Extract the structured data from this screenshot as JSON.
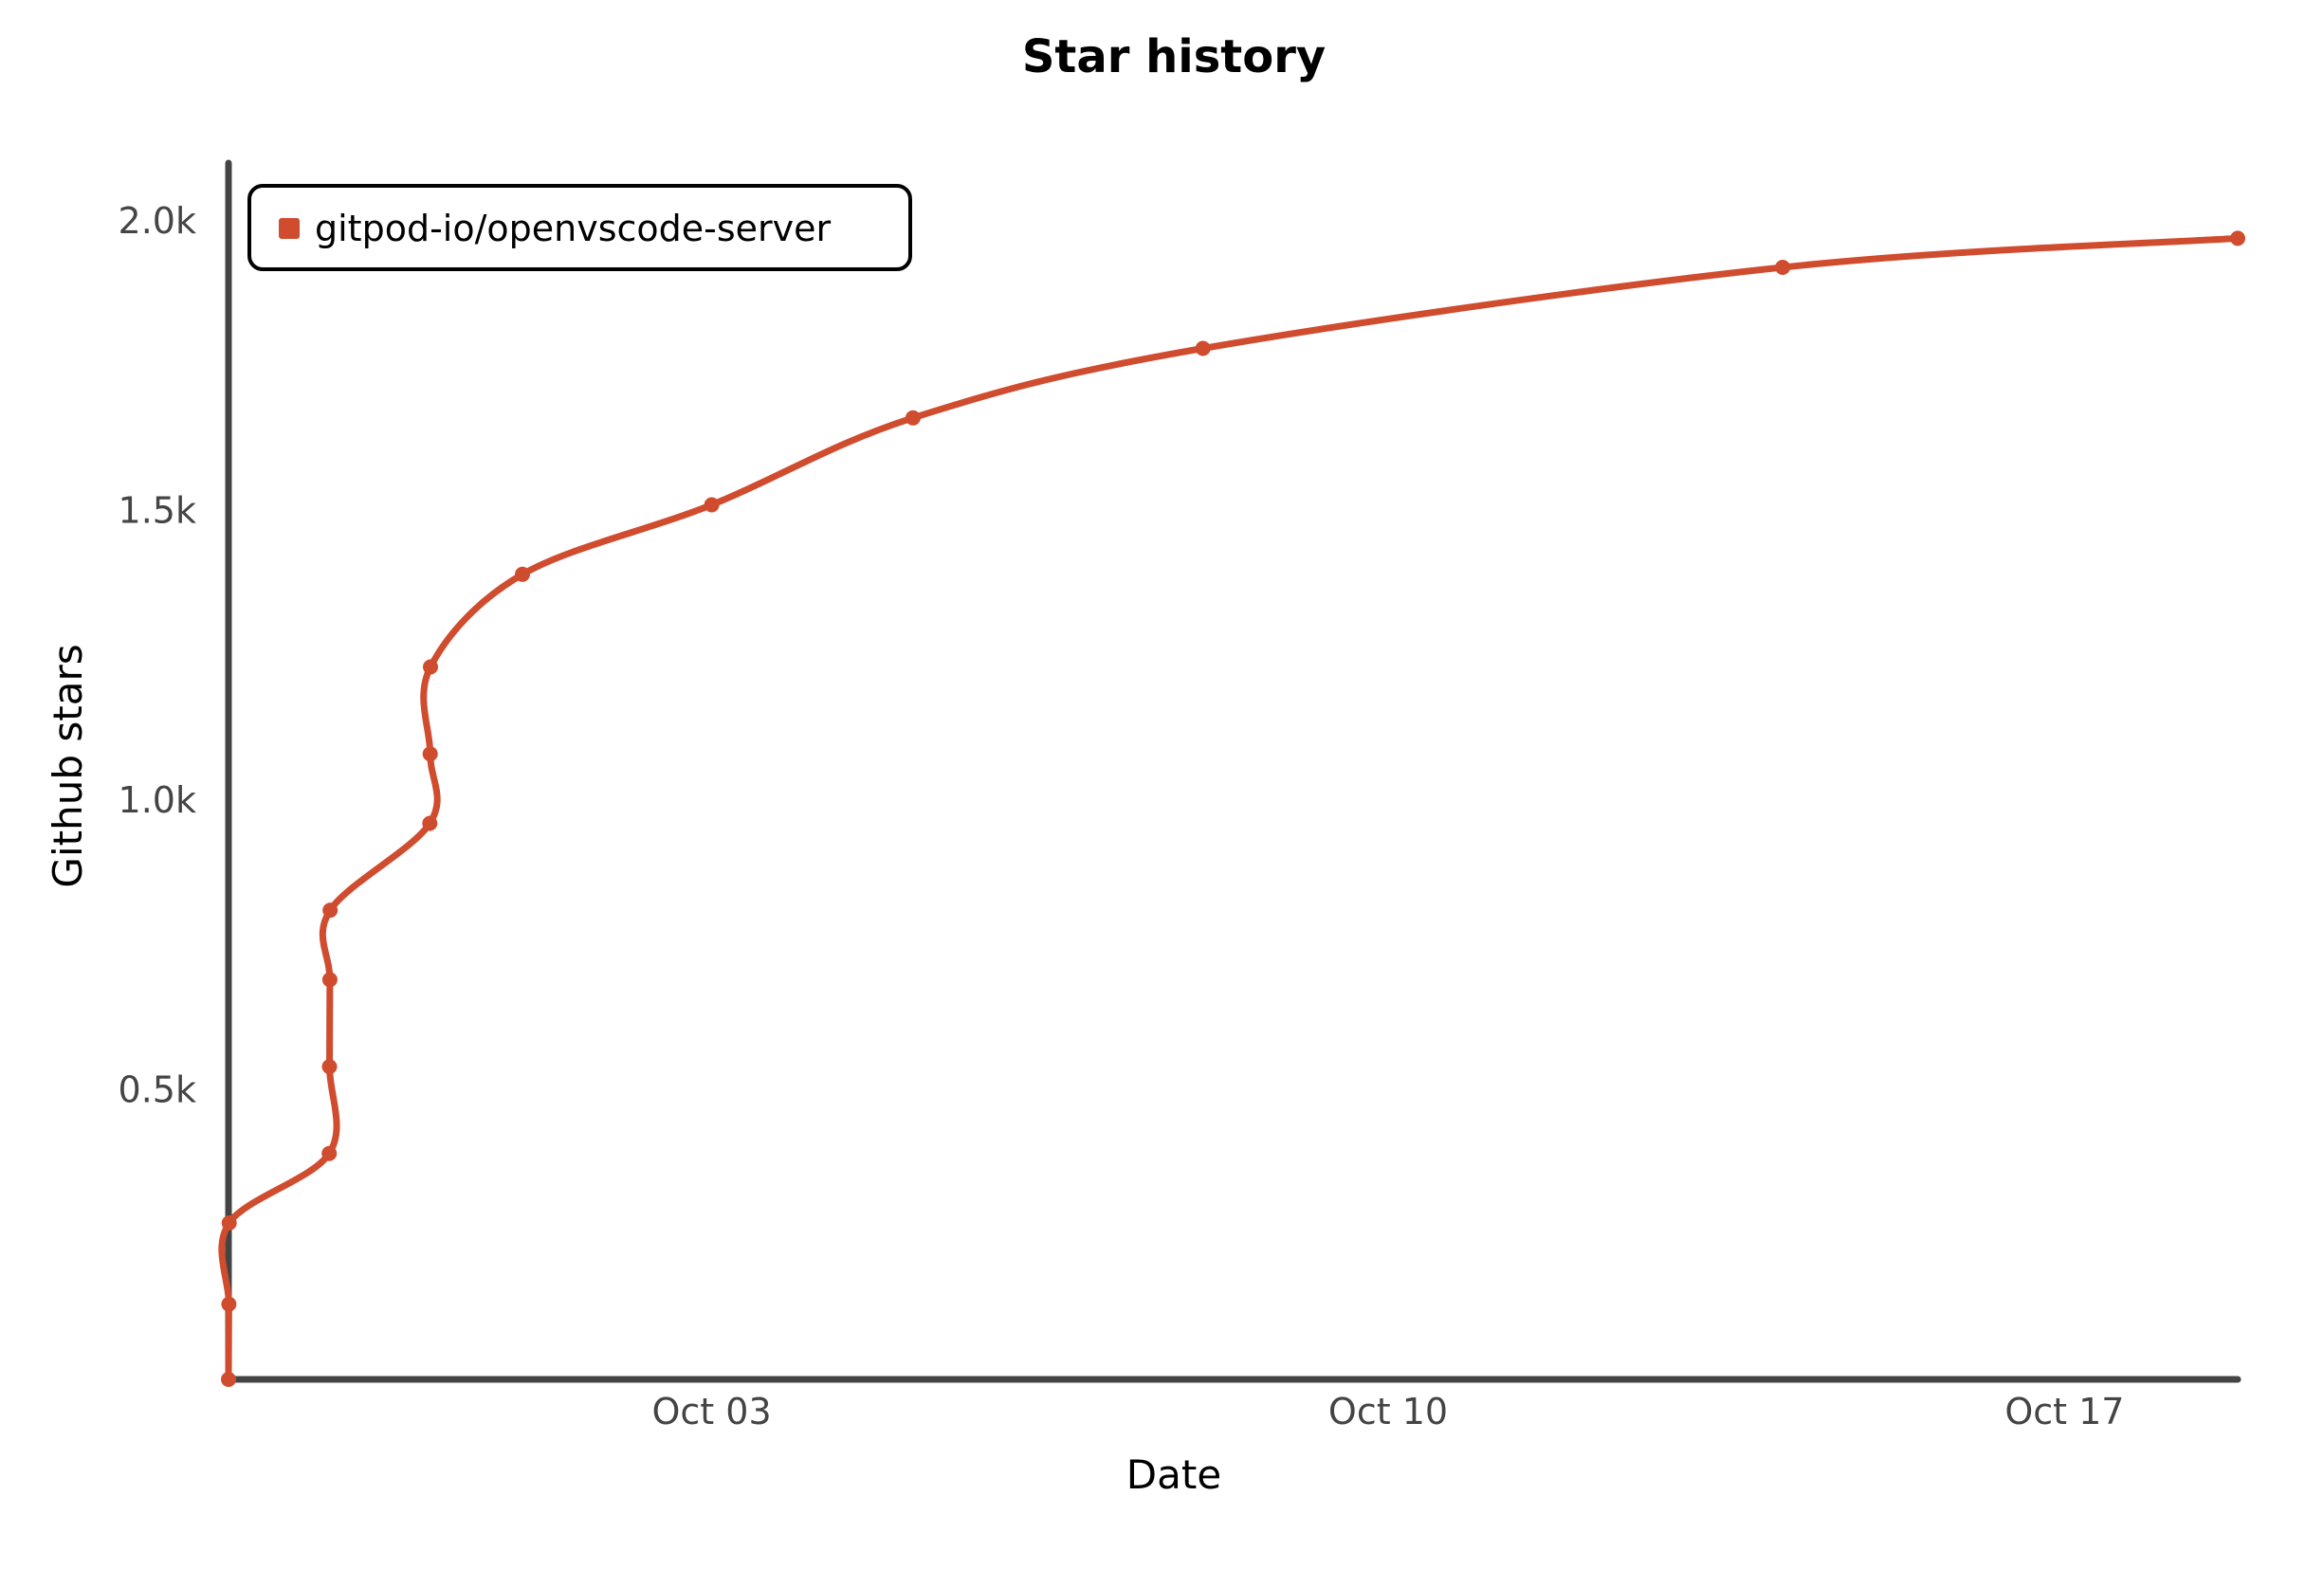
{
  "chart_data": {
    "type": "line",
    "title": "Star history",
    "xlabel": "Date",
    "ylabel": "Github stars",
    "x_ticks": [
      {
        "label": "Oct 03",
        "value": "2021-10-03"
      },
      {
        "label": "Oct 10",
        "value": "2021-10-10"
      },
      {
        "label": "Oct 17",
        "value": "2021-10-17"
      }
    ],
    "y_ticks": [
      {
        "label": "0.5k",
        "value": 500
      },
      {
        "label": "1.0k",
        "value": 1000
      },
      {
        "label": "1.5k",
        "value": 1500
      },
      {
        "label": "2.0k",
        "value": 2000
      }
    ],
    "xlim": [
      "2021-09-28",
      "2021-10-18T19:00"
    ],
    "ylim": [
      0,
      2100
    ],
    "grid": false,
    "legend": {
      "position": "top-left"
    },
    "series": [
      {
        "name": "gitpod-io/openvscode-server",
        "color": "#d04c2f",
        "points": [
          {
            "x": "2021-09-28T00:00",
            "y": 0
          },
          {
            "x": "2021-09-28T00:05",
            "y": 130
          },
          {
            "x": "2021-09-28T00:10",
            "y": 270
          },
          {
            "x": "2021-09-29T01:00",
            "y": 390
          },
          {
            "x": "2021-09-29T01:05",
            "y": 540
          },
          {
            "x": "2021-09-29T01:10",
            "y": 690
          },
          {
            "x": "2021-09-29T01:15",
            "y": 810
          },
          {
            "x": "2021-09-30T02:00",
            "y": 960
          },
          {
            "x": "2021-09-30T02:05",
            "y": 1080
          },
          {
            "x": "2021-09-30T02:10",
            "y": 1230
          },
          {
            "x": "2021-10-01T01:00",
            "y": 1390
          },
          {
            "x": "2021-10-03T00:00",
            "y": 1510
          },
          {
            "x": "2021-10-05T02:00",
            "y": 1660
          },
          {
            "x": "2021-10-08T02:00",
            "y": 1780
          },
          {
            "x": "2021-10-14T02:00",
            "y": 1920
          },
          {
            "x": "2021-10-18T19:00",
            "y": 1970
          }
        ]
      }
    ]
  }
}
